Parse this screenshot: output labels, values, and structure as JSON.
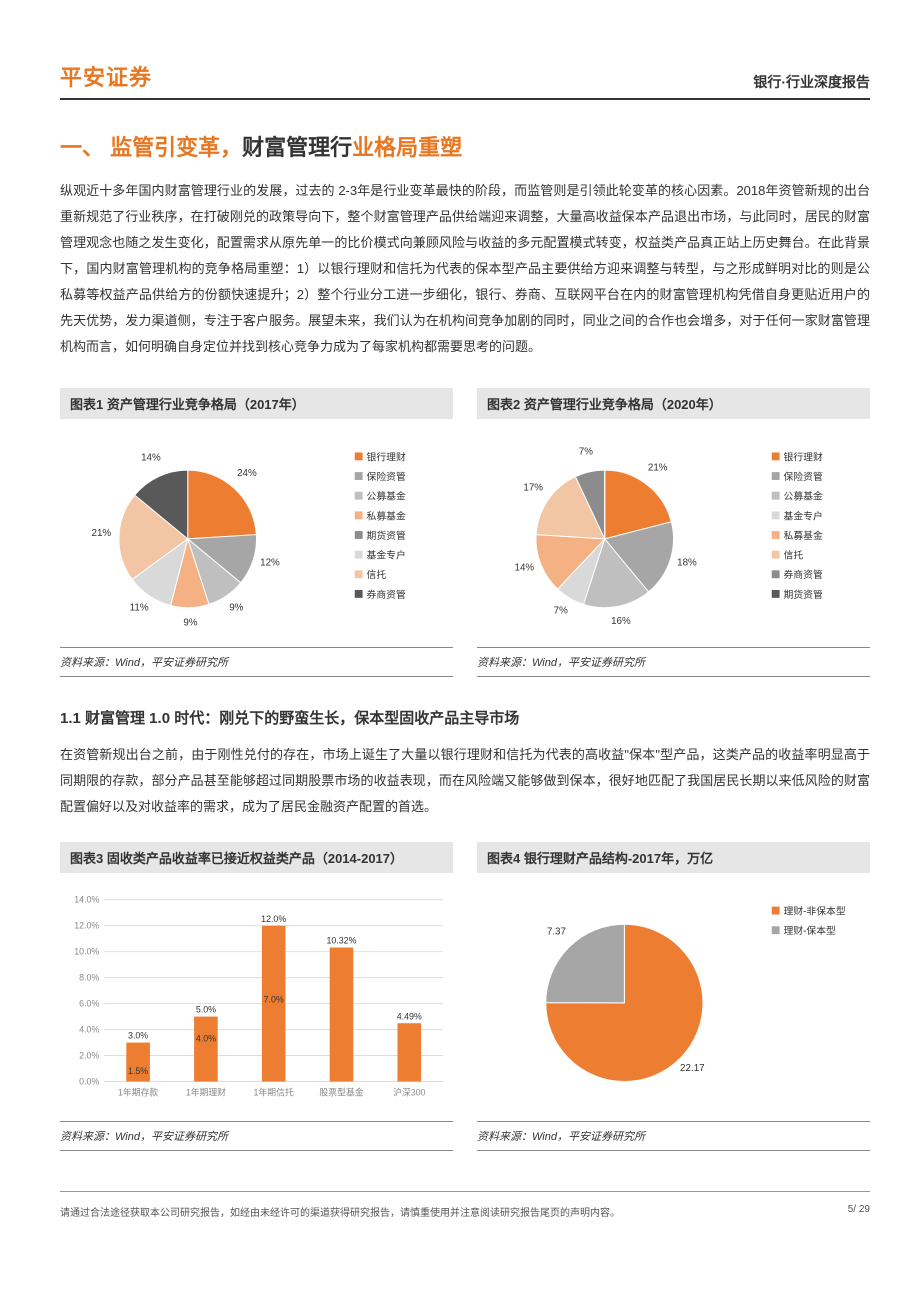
{
  "header": {
    "logo": "平安证券",
    "right": "银行·行业深度报告"
  },
  "h1_a": "一、  ",
  "h1_b": "监管引变革，",
  "h1_c": "财富管理行",
  "h1_d": "业格局重塑",
  "intro": "纵观近十多年国内财富管理行业的发展，过去的 2-3年是行业变革最快的阶段，而监管则是引领此轮变革的核心因素。2018年资管新规的出台重新规范了行业秩序，在打破刚兑的政策导向下，整个财富管理产品供给端迎来调整，大量高收益保本产品退出市场，与此同时，居民的财富管理观念也随之发生变化，配置需求从原先单一的比价模式向兼顾风险与收益的多元配置模式转变，权益类产品真正站上历史舞台。在此背景下，国内财富管理机构的竞争格局重塑：1）以银行理财和信托为代表的保本型产品主要供给方迎来调整与转型，与之形成鲜明对比的则是公私募等权益产品供给方的份额快速提升；2）整个行业分工进一步细化，银行、券商、互联网平台在内的财富管理机构凭借自身更贴近用户的先天优势，发力渠道侧，专注于客户服务。展望未来，我们认为在机构间竞争加剧的同时，同业之间的合作也会增多，对于任何一家财富管理机构而言，如何明确自身定位并找到核心竞争力成为了每家机构都需要思考的问题。",
  "chart1": {
    "title": "图表1    资产管理行业竞争格局（2017年）",
    "type": "pie",
    "series": [
      {
        "label": "银行理财",
        "value": 24,
        "color": "#ed7d31"
      },
      {
        "label": "保险资管",
        "value": 12,
        "color": "#a6a6a6"
      },
      {
        "label": "公募基金",
        "value": 9,
        "color": "#bfbfbf"
      },
      {
        "label": "私募基金",
        "value": 9,
        "color": "#f4b183"
      },
      {
        "label": "期货资管",
        "value": 0,
        "color": "#8c8c8c"
      },
      {
        "label": "基金专户",
        "value": 11,
        "color": "#d9d9d9"
      },
      {
        "label": "信托",
        "value": 21,
        "color": "#f2c5a4"
      },
      {
        "label": "券商资管",
        "value": 14,
        "color": "#595959"
      }
    ],
    "background": "#ffffff"
  },
  "chart2": {
    "title": "图表2    资产管理行业竞争格局（2020年）",
    "type": "pie",
    "series": [
      {
        "label": "银行理财",
        "value": 21,
        "color": "#ed7d31"
      },
      {
        "label": "保险资管",
        "value": 18,
        "color": "#a6a6a6"
      },
      {
        "label": "公募基金",
        "value": 16,
        "color": "#bfbfbf"
      },
      {
        "label": "基金专户",
        "value": 7,
        "color": "#d9d9d9"
      },
      {
        "label": "私募基金",
        "value": 14,
        "color": "#f4b183"
      },
      {
        "label": "信托",
        "value": 17,
        "color": "#f2c5a4"
      },
      {
        "label": "券商资管",
        "value": 7,
        "color": "#8c8c8c"
      },
      {
        "label": "期货资管",
        "value": 0,
        "color": "#595959"
      }
    ],
    "background": "#ffffff"
  },
  "src1": "资料来源：Wind，平安证券研究所",
  "src2": "资料来源：Wind，平安证券研究所",
  "h2": "1.1 财富管理 1.0 时代：刚兑下的野蛮生长，保本型固收产品主导市场",
  "para2": "在资管新规出台之前，由于刚性兑付的存在，市场上诞生了大量以银行理财和信托为代表的高收益\"保本\"型产品，这类产品的收益率明显高于同期限的存款，部分产品甚至能够超过同期股票市场的收益表现，而在风险端又能够做到保本，很好地匹配了我国居民长期以来低风险的财富配置偏好以及对收益率的需求，成为了居民金融资产配置的首选。",
  "chart3": {
    "title": "图表3    固收类产品收益率已接近权益类产品（2014-2017）",
    "type": "bar",
    "categories": [
      "1年期存款",
      "1年期理财",
      "1年期信托",
      "股票型基金",
      "沪深300"
    ],
    "max": [
      3.0,
      5.0,
      12.0,
      10.32,
      4.49
    ],
    "max_labels": [
      "3.0%",
      "5.0%",
      "12.0%",
      "10.32%",
      "4.49%"
    ],
    "min": [
      1.5,
      4.0,
      7.0,
      null,
      null
    ],
    "min_labels": [
      "1.5%",
      "4.0%",
      "7.0%",
      "",
      ""
    ],
    "colors": {
      "max": "#ed7d31",
      "min": "#a6a6a6"
    },
    "ylim": [
      0,
      14
    ],
    "yticks": [
      "0.0%",
      "2.0%",
      "4.0%",
      "6.0%",
      "8.0%",
      "10.0%",
      "12.0%",
      "14.0%"
    ],
    "grid_color": "#dddddd",
    "background": "#ffffff"
  },
  "chart4": {
    "title": "图表4    银行理财产品结构-2017年，万亿",
    "type": "pie",
    "series": [
      {
        "label": "理财-非保本型",
        "value": 22.17,
        "color": "#ed7d31"
      },
      {
        "label": "理财-保本型",
        "value": 7.37,
        "color": "#a6a6a6"
      }
    ],
    "background": "#ffffff"
  },
  "src3": "资料来源：Wind，平安证券研究所",
  "src4": "资料来源：Wind，平安证券研究所",
  "footer": {
    "left": "请通过合法途径获取本公司研究报告，如经由未经许可的渠道获得研究报告，请慎重使用并注意阅读研究报告尾页的声明内容。",
    "right": "5/ 29"
  }
}
